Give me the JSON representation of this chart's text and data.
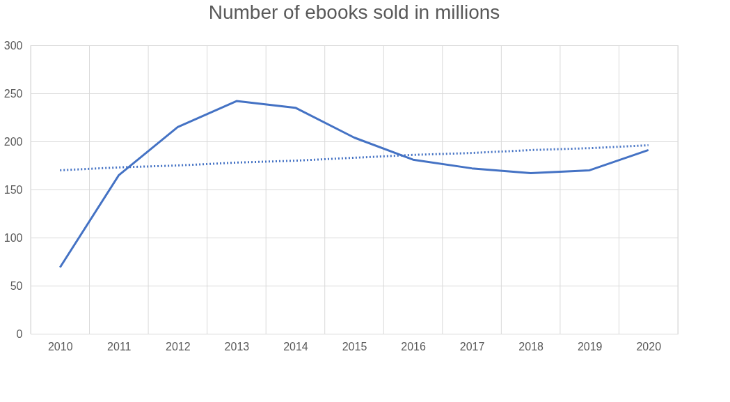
{
  "chart_data": {
    "type": "line",
    "title": "Number of ebooks sold in millions",
    "categories": [
      "2010",
      "2011",
      "2012",
      "2013",
      "2014",
      "2015",
      "2016",
      "2017",
      "2018",
      "2019",
      "2020"
    ],
    "series": [
      {
        "color": "#4472c4",
        "values": [
          69,
          165,
          215,
          242,
          235,
          204,
          181,
          172,
          167,
          170,
          191
        ],
        "line_style": "solid"
      },
      {
        "color": "#4472c4",
        "type": "line",
        "values": [
          170,
          173,
          175,
          178,
          180,
          183,
          186,
          188,
          191,
          193,
          196
        ],
        "line_style": "dotted"
      }
    ],
    "ylim": [
      0,
      300
    ],
    "yticks": [
      0,
      50,
      100,
      150,
      200,
      250,
      300
    ],
    "grid": true,
    "marker": "none"
  }
}
